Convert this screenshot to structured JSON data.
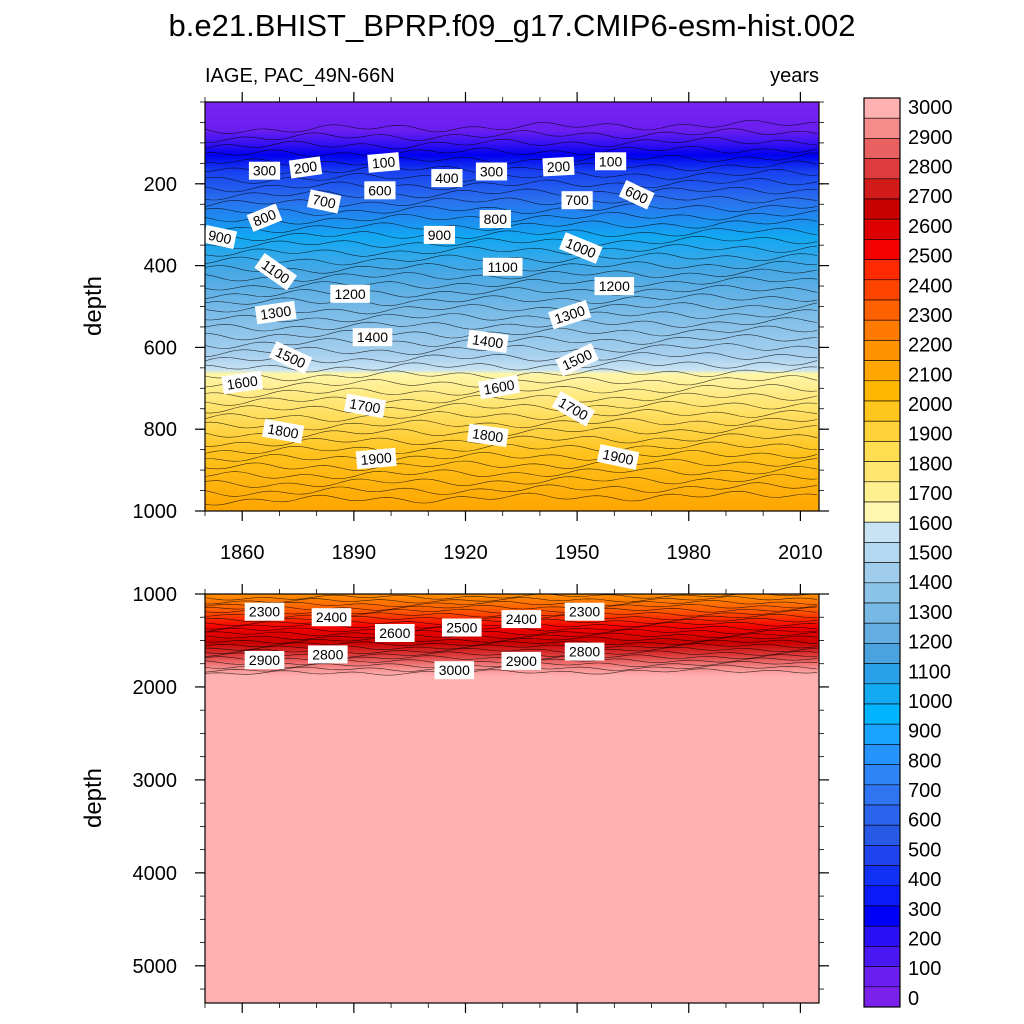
{
  "chart_data": {
    "type": "heatmap",
    "title": "b.e21.BHIST_BPRP.f09_g17.CMIP6-esm-hist.002",
    "variable_label": "IAGE, PAC_49N-66N",
    "units_label": "years",
    "x": {
      "range": [
        1850,
        2015
      ],
      "ticks": [
        "1860",
        "1890",
        "1920",
        "1950",
        "1980",
        "2010"
      ],
      "tick_values": [
        1860,
        1890,
        1920,
        1950,
        1980,
        2010
      ]
    },
    "panels": [
      {
        "name": "upper",
        "ylabel": "depth",
        "ylim": [
          1000,
          0
        ],
        "yticks": [
          "200",
          "400",
          "600",
          "800",
          "1000"
        ],
        "ytick_values": [
          200,
          400,
          600,
          800,
          1000
        ],
        "contour_labels": [
          {
            "text": "300",
            "year": 1866,
            "depth": 168,
            "angle": 0
          },
          {
            "text": "200",
            "year": 1877,
            "depth": 160,
            "angle": -8
          },
          {
            "text": "100",
            "year": 1898,
            "depth": 148,
            "angle": -5
          },
          {
            "text": "400",
            "year": 1915,
            "depth": 186,
            "angle": 0
          },
          {
            "text": "300",
            "year": 1927,
            "depth": 170,
            "angle": 0
          },
          {
            "text": "200",
            "year": 1945,
            "depth": 158,
            "angle": -3
          },
          {
            "text": "100",
            "year": 1959,
            "depth": 145,
            "angle": 0
          },
          {
            "text": "600",
            "year": 1897,
            "depth": 216,
            "angle": 0
          },
          {
            "text": "700",
            "year": 1882,
            "depth": 243,
            "angle": 12
          },
          {
            "text": "800",
            "year": 1866,
            "depth": 283,
            "angle": -22
          },
          {
            "text": "700",
            "year": 1950,
            "depth": 240,
            "angle": 0
          },
          {
            "text": "600",
            "year": 1966,
            "depth": 227,
            "angle": 25
          },
          {
            "text": "800",
            "year": 1928,
            "depth": 286,
            "angle": 0
          },
          {
            "text": "900",
            "year": 1854,
            "depth": 330,
            "angle": 12
          },
          {
            "text": "900",
            "year": 1913,
            "depth": 325,
            "angle": 0
          },
          {
            "text": "1000",
            "year": 1951,
            "depth": 357,
            "angle": 22
          },
          {
            "text": "1100",
            "year": 1869,
            "depth": 415,
            "angle": 35
          },
          {
            "text": "1100",
            "year": 1930,
            "depth": 403,
            "angle": 0
          },
          {
            "text": "1200",
            "year": 1889,
            "depth": 469,
            "angle": 0
          },
          {
            "text": "1200",
            "year": 1960,
            "depth": 450,
            "angle": 0
          },
          {
            "text": "1300",
            "year": 1869,
            "depth": 515,
            "angle": -8
          },
          {
            "text": "1300",
            "year": 1948,
            "depth": 520,
            "angle": -18
          },
          {
            "text": "1400",
            "year": 1895,
            "depth": 575,
            "angle": 0
          },
          {
            "text": "1400",
            "year": 1926,
            "depth": 585,
            "angle": 8
          },
          {
            "text": "1500",
            "year": 1873,
            "depth": 625,
            "angle": 25
          },
          {
            "text": "1500",
            "year": 1950,
            "depth": 630,
            "angle": -25
          },
          {
            "text": "1600",
            "year": 1860,
            "depth": 686,
            "angle": -8
          },
          {
            "text": "1600",
            "year": 1929,
            "depth": 697,
            "angle": -10
          },
          {
            "text": "1700",
            "year": 1893,
            "depth": 743,
            "angle": 10
          },
          {
            "text": "1700",
            "year": 1949,
            "depth": 750,
            "angle": 30
          },
          {
            "text": "1800",
            "year": 1871,
            "depth": 805,
            "angle": 10
          },
          {
            "text": "1800",
            "year": 1926,
            "depth": 815,
            "angle": 8
          },
          {
            "text": "1900",
            "year": 1896,
            "depth": 872,
            "angle": -5
          },
          {
            "text": "1900",
            "year": 1961,
            "depth": 868,
            "angle": 12
          }
        ]
      },
      {
        "name": "lower",
        "ylabel": "depth",
        "ylim": [
          5400,
          1000
        ],
        "yticks": [
          "1000",
          "2000",
          "3000",
          "4000",
          "5000"
        ],
        "ytick_values": [
          1000,
          2000,
          3000,
          4000,
          5000
        ],
        "contour_labels": [
          {
            "text": "2300",
            "year": 1866,
            "depth": 1190,
            "angle": 0
          },
          {
            "text": "2400",
            "year": 1884,
            "depth": 1250,
            "angle": 0
          },
          {
            "text": "2600",
            "year": 1901,
            "depth": 1420,
            "angle": 0
          },
          {
            "text": "2500",
            "year": 1919,
            "depth": 1360,
            "angle": 0
          },
          {
            "text": "2400",
            "year": 1935,
            "depth": 1270,
            "angle": 0
          },
          {
            "text": "2300",
            "year": 1952,
            "depth": 1190,
            "angle": 0
          },
          {
            "text": "2900",
            "year": 1866,
            "depth": 1710,
            "angle": 0
          },
          {
            "text": "2800",
            "year": 1883,
            "depth": 1650,
            "angle": 0
          },
          {
            "text": "3000",
            "year": 1917,
            "depth": 1820,
            "angle": 0
          },
          {
            "text": "2900",
            "year": 1935,
            "depth": 1720,
            "angle": 0
          },
          {
            "text": "2800",
            "year": 1952,
            "depth": 1620,
            "angle": 0
          }
        ]
      }
    ],
    "colorbar": {
      "labels": [
        "3000",
        "2900",
        "2800",
        "2700",
        "2600",
        "2500",
        "2400",
        "2300",
        "2200",
        "2100",
        "2000",
        "1900",
        "1800",
        "1700",
        "1600",
        "1500",
        "1400",
        "1300",
        "1200",
        "1100",
        "1000",
        "900",
        "800",
        "700",
        "600",
        "500",
        "400",
        "300",
        "200",
        "100",
        "0"
      ],
      "colors": [
        "#f68b8b",
        "#e96060",
        "#de3c3c",
        "#d11a1a",
        "#c90000",
        "#dd0000",
        "#f50000",
        "#ff2a00",
        "#ff4400",
        "#ff6000",
        "#ff7a00",
        "#ff9200",
        "#ffa700",
        "#ffb800",
        "#ffc61e",
        "#ffd237",
        "#ffde52",
        "#ffe670",
        "#fff08f",
        "#fff7b0",
        "#c8e3f3",
        "#b3d8f0",
        "#a0cdec",
        "#8cc3e9",
        "#78b8e5",
        "#63ade2",
        "#4aa3df",
        "#2aa0e8",
        "#12abf2",
        "#00b4ff",
        "#18a4ff",
        "#2694ff",
        "#2f84f8",
        "#2f75f2",
        "#2b64ec",
        "#2758e6",
        "#1f44ee",
        "#1030f5",
        "#0a1af8",
        "#0000f8",
        "#2a10f5",
        "#4a18f2",
        "#6a1ef0",
        "#7a22ec"
      ],
      "top_color": "#ffb0b0"
    }
  }
}
